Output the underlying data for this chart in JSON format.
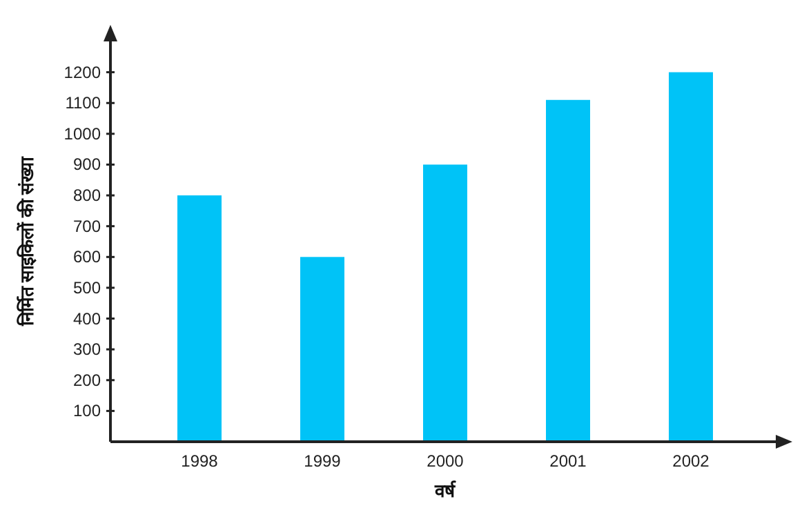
{
  "chart_data": {
    "type": "bar",
    "xlabel": "वर्ष",
    "ylabel": "निर्मित साइकिलों की संख्या",
    "categories": [
      "1998",
      "1999",
      "2000",
      "2001",
      "2002"
    ],
    "values": [
      800,
      600,
      900,
      1110,
      1200
    ],
    "color": "#00c3f7",
    "ylim": [
      0,
      1300
    ],
    "yticks": [
      100,
      200,
      300,
      400,
      500,
      600,
      700,
      800,
      900,
      1000,
      1100,
      1200
    ],
    "grid": false
  }
}
